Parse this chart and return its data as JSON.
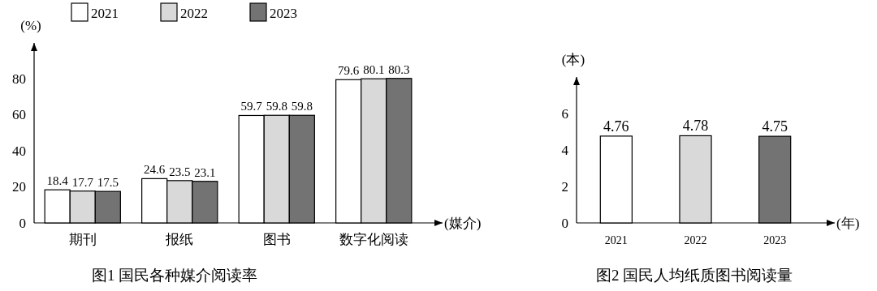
{
  "chart_data": [
    {
      "type": "bar",
      "title": "图1 国民各种媒介阅读率",
      "ylabel": "(%)",
      "xlabel": "(媒介)",
      "categories": [
        "期刊",
        "报纸",
        "图书",
        "数字化阅读"
      ],
      "series": [
        {
          "name": "2021",
          "color": "#ffffff",
          "values": [
            18.4,
            24.6,
            59.7,
            79.6
          ]
        },
        {
          "name": "2022",
          "color": "#d9d9d9",
          "values": [
            17.7,
            23.5,
            59.8,
            80.1
          ]
        },
        {
          "name": "2023",
          "color": "#737373",
          "values": [
            17.5,
            23.1,
            59.8,
            80.3
          ]
        }
      ],
      "ylim": [
        0,
        100
      ],
      "yticks": [
        0,
        20,
        40,
        60,
        80
      ],
      "data_labels": true,
      "legend": "top left",
      "grid": false
    },
    {
      "type": "bar",
      "title": "图2 国民人均纸质图书阅读量",
      "ylabel": "(本)",
      "xlabel": "(年)",
      "categories": [
        "2021",
        "2022",
        "2023"
      ],
      "values": [
        4.76,
        4.78,
        4.75
      ],
      "colors": [
        "#ffffff",
        "#d9d9d9",
        "#737373"
      ],
      "ylim": [
        0,
        8
      ],
      "yticks": [
        0,
        2,
        4,
        6
      ],
      "data_labels": true,
      "grid": false
    }
  ]
}
